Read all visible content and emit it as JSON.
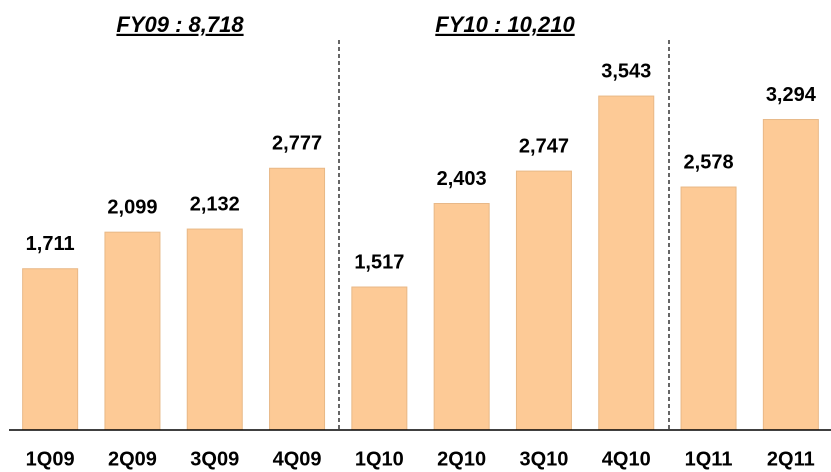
{
  "chart_data": {
    "type": "bar",
    "annotations": [
      "FY09 : 8,718",
      "FY10 : 10,210"
    ],
    "categories": [
      "1Q09",
      "2Q09",
      "3Q09",
      "4Q09",
      "1Q10",
      "2Q10",
      "3Q10",
      "4Q10",
      "1Q11",
      "2Q11"
    ],
    "values": [
      1711,
      2099,
      2132,
      2777,
      1517,
      2403,
      2747,
      3543,
      2578,
      3294
    ],
    "value_labels": [
      "1,711",
      "2,099",
      "2,132",
      "2,777",
      "1,517",
      "2,403",
      "2,747",
      "3,543",
      "2,578",
      "3,294"
    ],
    "color": "#fdca96",
    "ylim": [
      0,
      4000
    ],
    "grid": false
  }
}
